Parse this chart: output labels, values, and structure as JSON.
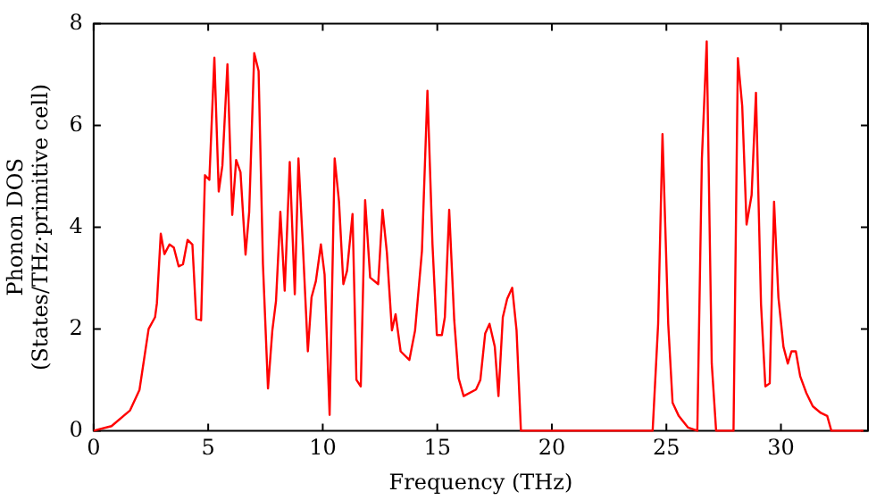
{
  "chart_data": {
    "type": "line",
    "xlabel": "Frequency (THz)",
    "ylabel": "Phonon DOS\n(States/THz·primitive cell)",
    "xlim": [
      0,
      33.8
    ],
    "xticks": [
      0,
      5,
      10,
      15,
      20,
      25,
      30
    ],
    "ylim": [
      0,
      8
    ],
    "yticks": [
      0,
      2,
      4,
      6,
      8
    ],
    "grid": false,
    "legend": false,
    "marker": "none",
    "line_style": "solid",
    "series": [
      {
        "color": "#ff0000",
        "x": [
          0,
          0.78,
          1.59,
          2.0,
          2.4,
          2.68,
          2.76,
          2.93,
          3.09,
          3.31,
          3.5,
          3.71,
          3.9,
          4.1,
          4.31,
          4.48,
          4.69,
          4.86,
          5.05,
          5.27,
          5.46,
          5.62,
          5.84,
          6.05,
          6.22,
          6.41,
          6.63,
          6.79,
          7.01,
          7.2,
          7.39,
          7.61,
          7.8,
          7.96,
          8.15,
          8.34,
          8.56,
          8.78,
          8.94,
          9.13,
          9.35,
          9.51,
          9.7,
          9.92,
          10.08,
          10.3,
          10.52,
          10.71,
          10.9,
          11.06,
          11.3,
          11.47,
          11.66,
          11.85,
          12.07,
          12.42,
          12.61,
          12.8,
          13.02,
          13.18,
          13.4,
          13.78,
          14.03,
          14.33,
          14.57,
          14.79,
          14.98,
          15.2,
          15.33,
          15.52,
          15.74,
          15.93,
          16.15,
          16.69,
          16.88,
          17.09,
          17.28,
          17.51,
          17.67,
          17.86,
          18.05,
          18.27,
          18.46,
          18.65,
          24.4,
          24.64,
          24.83,
          25.08,
          25.27,
          25.54,
          25.95,
          26.35,
          26.55,
          26.76,
          26.98,
          27.17,
          27.93,
          28.12,
          28.31,
          28.5,
          28.72,
          28.91,
          29.13,
          29.32,
          29.51,
          29.7,
          29.89,
          30.11,
          30.3,
          30.46,
          30.65,
          30.84,
          31.11,
          31.39,
          31.74,
          32.02,
          32.2,
          33.6
        ],
        "values": [
          0,
          0.09,
          0.4,
          0.8,
          2.0,
          2.23,
          2.5,
          3.87,
          3.47,
          3.66,
          3.6,
          3.23,
          3.27,
          3.75,
          3.66,
          2.2,
          2.17,
          5.02,
          4.93,
          7.33,
          4.7,
          5.21,
          7.2,
          4.24,
          5.32,
          5.08,
          3.46,
          4.3,
          7.42,
          7.07,
          3.27,
          0.83,
          1.97,
          2.55,
          4.3,
          2.75,
          5.28,
          2.68,
          5.35,
          3.66,
          1.56,
          2.62,
          2.94,
          3.66,
          3.07,
          0.31,
          5.35,
          4.5,
          2.88,
          3.14,
          4.26,
          1.0,
          0.87,
          4.53,
          3.01,
          2.88,
          4.34,
          3.5,
          1.97,
          2.29,
          1.56,
          1.39,
          1.97,
          3.53,
          6.68,
          3.66,
          1.88,
          1.88,
          2.23,
          4.34,
          2.17,
          1.03,
          0.68,
          0.81,
          1.0,
          1.91,
          2.1,
          1.65,
          0.68,
          2.23,
          2.59,
          2.81,
          1.97,
          0,
          0,
          2.1,
          5.83,
          2.1,
          0.55,
          0.29,
          0.06,
          0,
          5.35,
          7.65,
          1.32,
          0,
          0,
          7.32,
          6.38,
          4.05,
          4.63,
          6.64,
          2.49,
          0.87,
          0.93,
          4.5,
          2.62,
          1.65,
          1.32,
          1.56,
          1.56,
          1.07,
          0.74,
          0.48,
          0.35,
          0.29,
          0,
          0
        ]
      }
    ]
  }
}
